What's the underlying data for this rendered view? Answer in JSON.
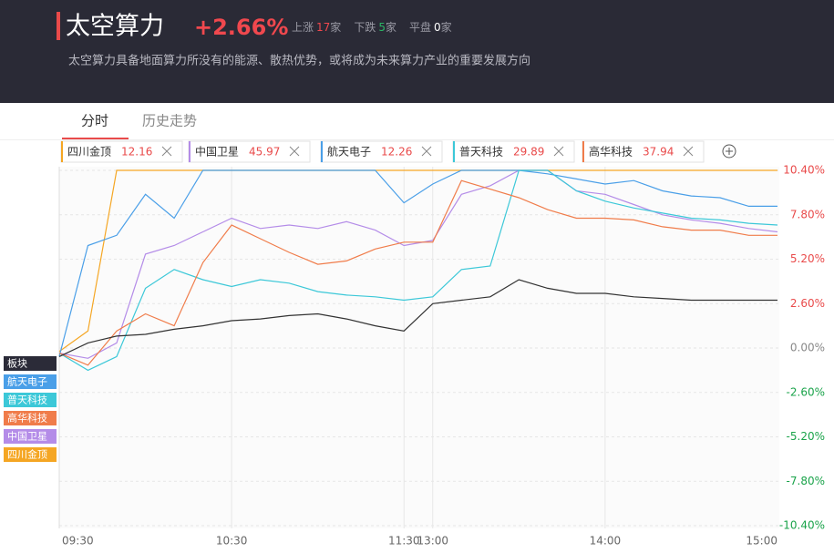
{
  "header": {
    "title": "太空算力",
    "change": "+2.66%",
    "stats": [
      {
        "label": "上涨",
        "count": "17",
        "unit": "家"
      },
      {
        "label": "下跌",
        "count": "5",
        "unit": "家"
      },
      {
        "label": "平盘",
        "count": "0",
        "unit": "家"
      }
    ],
    "description": "太空算力具备地面算力所没有的能源、散热优势，或将成为未来算力产业的重要发展方向"
  },
  "tabs": [
    "分时",
    "历史走势"
  ],
  "chart_data": {
    "type": "line",
    "categories": [
      "09:30",
      null,
      null,
      null,
      null,
      null,
      "10:30",
      null,
      null,
      null,
      null,
      null,
      "11:30",
      "13:00",
      null,
      null,
      null,
      null,
      null,
      "14:00",
      null,
      null,
      null,
      null,
      null,
      "15:00"
    ],
    "ylim": [
      -10.4,
      10.4
    ],
    "yticks": [
      {
        "value": 10.4,
        "label": "10.40%"
      },
      {
        "value": 7.8,
        "label": "7.80%"
      },
      {
        "value": 5.2,
        "label": "5.20%"
      },
      {
        "value": 2.6,
        "label": "2.60%"
      },
      {
        "value": 0,
        "label": "0.00%"
      },
      {
        "value": -2.6,
        "label": "-2.60%"
      },
      {
        "value": -5.2,
        "label": "-5.20%"
      },
      {
        "value": -7.8,
        "label": "-7.80%"
      },
      {
        "value": -10.4,
        "label": "-10.40%"
      }
    ],
    "grid": true,
    "series": [
      {
        "name": "四川金顶",
        "price": "12.16",
        "color": "#f5a623",
        "values": [
          -0.2,
          1.0,
          10.4,
          10.4,
          10.4,
          10.4,
          10.4,
          10.4,
          10.4,
          10.4,
          10.4,
          10.4,
          10.4,
          10.4,
          10.4,
          10.4,
          10.4,
          10.4,
          10.4,
          10.4,
          10.4,
          10.4,
          10.4,
          10.4,
          10.4,
          10.4
        ]
      },
      {
        "name": "中国卫星",
        "price": "45.97",
        "color": "#b48ce8",
        "values": [
          -0.3,
          -0.6,
          0.3,
          5.5,
          6.0,
          6.8,
          7.6,
          7.0,
          7.2,
          7.0,
          7.4,
          6.9,
          6.0,
          6.3,
          9.0,
          9.5,
          10.4,
          10.4,
          9.2,
          9.0,
          8.4,
          7.8,
          7.5,
          7.3,
          7.0,
          6.8
        ]
      },
      {
        "name": "航天电子",
        "price": "12.26",
        "color": "#4a9fe8",
        "values": [
          -0.5,
          6.0,
          6.6,
          9.0,
          7.6,
          10.4,
          10.4,
          10.4,
          10.4,
          10.4,
          10.4,
          10.4,
          8.5,
          9.6,
          10.4,
          10.4,
          10.4,
          10.2,
          9.9,
          9.6,
          9.8,
          9.2,
          8.9,
          8.8,
          8.3,
          8.3
        ]
      },
      {
        "name": "普天科技",
        "price": "29.89",
        "color": "#3cc8d8",
        "values": [
          -0.3,
          -1.3,
          -0.5,
          3.5,
          4.6,
          4.0,
          3.6,
          4.0,
          3.8,
          3.3,
          3.1,
          3.0,
          2.8,
          3.0,
          4.6,
          4.8,
          10.4,
          10.4,
          9.2,
          8.6,
          8.2,
          7.9,
          7.6,
          7.5,
          7.3,
          7.2
        ]
      },
      {
        "name": "高华科技",
        "price": "37.94",
        "color": "#f07c4a",
        "values": [
          -0.3,
          -1.0,
          1.0,
          2.0,
          1.3,
          5.0,
          7.2,
          6.4,
          5.6,
          4.9,
          5.1,
          5.8,
          6.2,
          6.2,
          9.8,
          9.3,
          8.8,
          8.1,
          7.6,
          7.6,
          7.5,
          7.1,
          6.9,
          6.9,
          6.6,
          6.6
        ]
      },
      {
        "name": "板块",
        "color": "#333333",
        "values": [
          -0.5,
          0.3,
          0.7,
          0.8,
          1.1,
          1.3,
          1.6,
          1.7,
          1.9,
          2.0,
          1.7,
          1.3,
          1.0,
          2.6,
          2.8,
          3.0,
          4.0,
          3.5,
          3.2,
          3.2,
          3.0,
          2.9,
          2.8,
          2.8,
          2.8,
          2.8
        ]
      }
    ]
  }
}
